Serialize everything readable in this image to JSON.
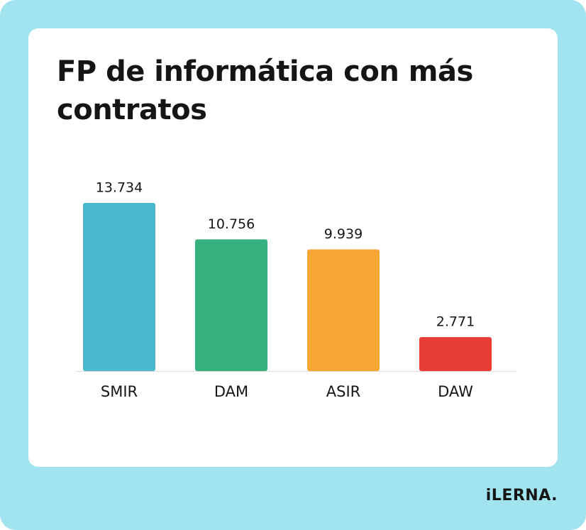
{
  "chart_data": {
    "type": "bar",
    "title": "FP de informática con más contratos",
    "categories": [
      "SMIR",
      "DAM",
      "ASIR",
      "DAW"
    ],
    "values": [
      13734,
      10756,
      9939,
      2771
    ],
    "value_labels": [
      "13.734",
      "10.756",
      "9.939",
      "2.771"
    ],
    "colors": [
      "#4bbacf",
      "#36b07f",
      "#f6a632",
      "#e73d34"
    ]
  },
  "brand": "iLERNA."
}
